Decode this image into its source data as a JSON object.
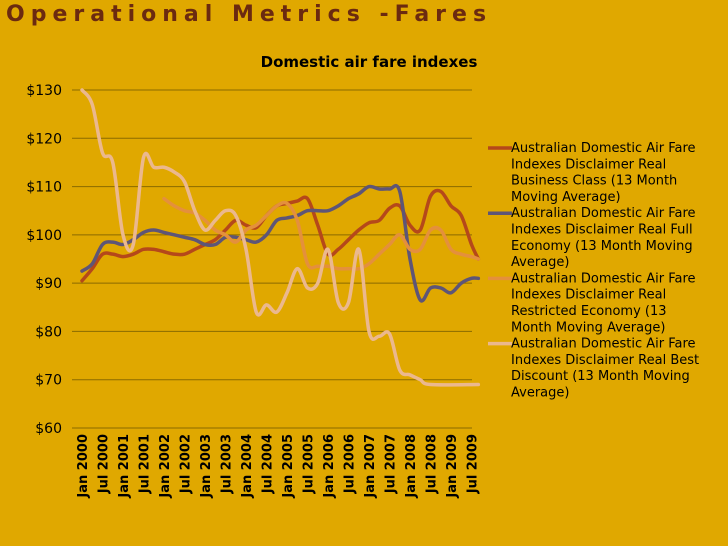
{
  "slide": {
    "title": "Operational Metrics -Fares"
  },
  "chart_data": {
    "type": "line",
    "title": "Domestic air fare indexes",
    "xlabel": "",
    "ylabel": "",
    "ylim": [
      60,
      130
    ],
    "y_tick_labels": [
      "$60",
      "$70",
      "$80",
      "$90",
      "$100",
      "$110",
      "$120",
      "$130"
    ],
    "y_ticks": [
      60,
      70,
      80,
      90,
      100,
      110,
      120,
      130
    ],
    "x_tick_labels": [
      "Jan 2000",
      "Jul 2000",
      "Jan 2001",
      "Jul 2001",
      "Jan 2002",
      "Jul 2002",
      "Jan 2003",
      "Jul 2003",
      "Jan 2004",
      "Jul 2004",
      "Jan 2005",
      "Jul 2005",
      "Jan 2006",
      "Jul 2006",
      "Jan 2007",
      "Jul 2007",
      "Jan 2008",
      "Jul 2008",
      "Jan 2009",
      "Jul 2009"
    ],
    "x_range": [
      "Jan 2000",
      "Jul 2009"
    ],
    "grid": "horizontal",
    "legend_position": "right",
    "series": [
      {
        "name": "Australian Domestic Air Fare Indexes Disclaimer Real Business Class (13 Month Moving Average)",
        "color": "#B5481A",
        "points": [
          [
            "Jan 2000",
            90.5
          ],
          [
            "Apr 2000",
            93
          ],
          [
            "Jul 2000",
            96
          ],
          [
            "Oct 2000",
            96
          ],
          [
            "Jan 2001",
            95.5
          ],
          [
            "Apr 2001",
            96
          ],
          [
            "Jul 2001",
            97
          ],
          [
            "Oct 2001",
            97
          ],
          [
            "Jan 2002",
            96.5
          ],
          [
            "Apr 2002",
            96
          ],
          [
            "Jul 2002",
            96
          ],
          [
            "Oct 2002",
            97
          ],
          [
            "Jan 2003",
            98
          ],
          [
            "Apr 2003",
            99
          ],
          [
            "Jul 2003",
            101
          ],
          [
            "Oct 2003",
            103
          ],
          [
            "Jan 2004",
            102
          ],
          [
            "Apr 2004",
            101.5
          ],
          [
            "Jul 2004",
            104
          ],
          [
            "Oct 2004",
            106
          ],
          [
            "Jan 2005",
            106.5
          ],
          [
            "Apr 2005",
            107
          ],
          [
            "Jul 2005",
            107.5
          ],
          [
            "Oct 2005",
            102
          ],
          [
            "Jan 2006",
            96
          ],
          [
            "Apr 2006",
            97
          ],
          [
            "Jul 2006",
            99
          ],
          [
            "Oct 2006",
            101
          ],
          [
            "Jan 2007",
            102.5
          ],
          [
            "Apr 2007",
            103
          ],
          [
            "Jul 2007",
            105.5
          ],
          [
            "Oct 2007",
            106
          ],
          [
            "Jan 2008",
            102
          ],
          [
            "Apr 2008",
            101
          ],
          [
            "Jul 2008",
            108
          ],
          [
            "Oct 2008",
            109
          ],
          [
            "Jan 2009",
            106
          ],
          [
            "Apr 2009",
            104
          ],
          [
            "Jul 2009",
            98
          ],
          [
            "Sep 2009",
            95
          ]
        ]
      },
      {
        "name": "Australian Domestic Air Fare Indexes Disclaimer Real Full Economy (13 Month Moving Average)",
        "color": "#5E5577",
        "points": [
          [
            "Jan 2000",
            92.5
          ],
          [
            "Apr 2000",
            94
          ],
          [
            "Jul 2000",
            98
          ],
          [
            "Oct 2000",
            98.5
          ],
          [
            "Jan 2001",
            98
          ],
          [
            "Apr 2001",
            99
          ],
          [
            "Jul 2001",
            100.5
          ],
          [
            "Oct 2001",
            101
          ],
          [
            "Jan 2002",
            100.5
          ],
          [
            "Apr 2002",
            100
          ],
          [
            "Jul 2002",
            99.5
          ],
          [
            "Oct 2002",
            99
          ],
          [
            "Jan 2003",
            98
          ],
          [
            "Apr 2003",
            98
          ],
          [
            "Jul 2003",
            99.5
          ],
          [
            "Oct 2003",
            99.5
          ],
          [
            "Jan 2004",
            99
          ],
          [
            "Apr 2004",
            98.5
          ],
          [
            "Jul 2004",
            100
          ],
          [
            "Oct 2004",
            103
          ],
          [
            "Jan 2005",
            103.5
          ],
          [
            "Apr 2005",
            104
          ],
          [
            "Jul 2005",
            105
          ],
          [
            "Oct 2005",
            105
          ],
          [
            "Jan 2006",
            105
          ],
          [
            "Apr 2006",
            106
          ],
          [
            "Jul 2006",
            107.5
          ],
          [
            "Oct 2006",
            108.5
          ],
          [
            "Jan 2007",
            110
          ],
          [
            "Apr 2007",
            109.5
          ],
          [
            "Jul 2007",
            109.5
          ],
          [
            "Oct 2007",
            109
          ],
          [
            "Jan 2008",
            95
          ],
          [
            "Apr 2008",
            86.5
          ],
          [
            "Jul 2008",
            89
          ],
          [
            "Oct 2008",
            89
          ],
          [
            "Jan 2009",
            88
          ],
          [
            "Apr 2009",
            90
          ],
          [
            "Jul 2009",
            91
          ],
          [
            "Sep 2009",
            91
          ]
        ]
      },
      {
        "name": "Australian Domestic Air Fare Indexes Disclaimer Real Restricted Economy (13 Month Moving Average)",
        "color": "#E4903C",
        "points": [
          [
            "Jan 2002",
            107.5
          ],
          [
            "Apr 2002",
            106
          ],
          [
            "Jul 2002",
            105
          ],
          [
            "Oct 2002",
            104.5
          ],
          [
            "Jan 2003",
            103
          ],
          [
            "Apr 2003",
            101
          ],
          [
            "Jul 2003",
            100
          ],
          [
            "Oct 2003",
            98.5
          ],
          [
            "Jan 2004",
            101
          ],
          [
            "Apr 2004",
            102
          ],
          [
            "Jul 2004",
            104
          ],
          [
            "Oct 2004",
            106
          ],
          [
            "Jan 2005",
            106.5
          ],
          [
            "Apr 2005",
            103
          ],
          [
            "Jul 2005",
            94
          ],
          [
            "Oct 2005",
            93.5
          ],
          [
            "Jan 2006",
            93.5
          ],
          [
            "Apr 2006",
            93
          ],
          [
            "Jul 2006",
            93
          ],
          [
            "Oct 2006",
            93
          ],
          [
            "Jan 2007",
            94
          ],
          [
            "Apr 2007",
            96
          ],
          [
            "Jul 2007",
            98
          ],
          [
            "Oct 2007",
            100
          ],
          [
            "Jan 2008",
            97
          ],
          [
            "Apr 2008",
            97
          ],
          [
            "Jul 2008",
            101
          ],
          [
            "Oct 2008",
            101
          ],
          [
            "Jan 2009",
            97
          ],
          [
            "Apr 2009",
            96
          ],
          [
            "Jul 2009",
            95.5
          ],
          [
            "Sep 2009",
            95
          ]
        ]
      },
      {
        "name": "Australian Domestic Air Fare Indexes Disclaimer Real Best Discount (13 Month Moving Average)",
        "color": "#EBB88E",
        "points": [
          [
            "Jan 2000",
            130
          ],
          [
            "Apr 2000",
            127
          ],
          [
            "Jul 2000",
            117
          ],
          [
            "Oct 2000",
            115
          ],
          [
            "Jan 2001",
            100
          ],
          [
            "Apr 2001",
            98
          ],
          [
            "Jul 2001",
            116
          ],
          [
            "Oct 2001",
            114
          ],
          [
            "Jan 2002",
            114
          ],
          [
            "Apr 2002",
            113
          ],
          [
            "Jul 2002",
            111
          ],
          [
            "Oct 2002",
            105
          ],
          [
            "Jan 2003",
            101
          ],
          [
            "Apr 2003",
            103
          ],
          [
            "Jul 2003",
            105
          ],
          [
            "Oct 2003",
            104
          ],
          [
            "Jan 2004",
            97
          ],
          [
            "Apr 2004",
            84
          ],
          [
            "Jul 2004",
            85.5
          ],
          [
            "Oct 2004",
            84
          ],
          [
            "Jan 2005",
            88
          ],
          [
            "Apr 2005",
            93
          ],
          [
            "Jul 2005",
            89
          ],
          [
            "Oct 2005",
            90
          ],
          [
            "Jan 2006",
            97
          ],
          [
            "Apr 2006",
            86
          ],
          [
            "Jul 2006",
            86
          ],
          [
            "Oct 2006",
            97
          ],
          [
            "Jan 2007",
            80
          ],
          [
            "Apr 2007",
            79
          ],
          [
            "Jul 2007",
            79.5
          ],
          [
            "Oct 2007",
            72
          ],
          [
            "Jan 2008",
            71
          ],
          [
            "Apr 2008",
            70
          ],
          [
            "Jul 2008",
            69
          ],
          [
            "Sep 2009",
            69
          ]
        ]
      }
    ],
    "legend": [
      [
        "Australian Domestic Air Fare",
        "Indexes Disclaimer Real",
        "Business Class (13 Month",
        "Moving Average)"
      ],
      [
        "Australian Domestic Air Fare",
        "Indexes Disclaimer Real Full",
        "Economy (13 Month Moving",
        "Average)"
      ],
      [
        "Australian Domestic Air Fare",
        "Indexes Disclaimer Real",
        "Restricted Economy (13",
        "Month Moving Average)"
      ],
      [
        "Australian Domestic Air Fare",
        "Indexes Disclaimer Real Best",
        "Discount (13 Month Moving",
        "Average)"
      ]
    ]
  }
}
